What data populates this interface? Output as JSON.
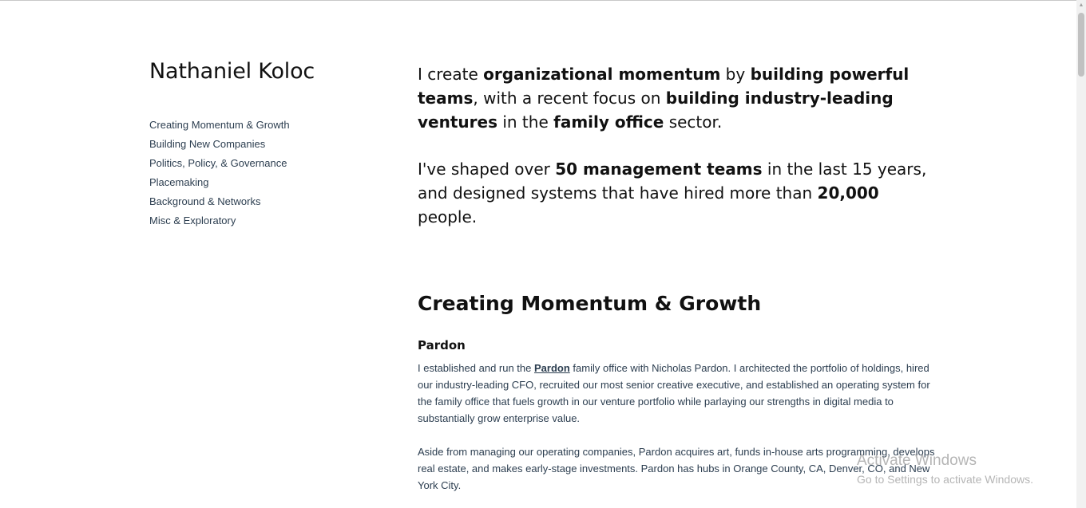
{
  "sidebar": {
    "title": "Nathaniel Koloc",
    "nav": [
      "Creating Momentum & Growth",
      "Building New Companies",
      "Politics, Policy, & Governance",
      "Placemaking",
      "Background & Networks",
      "Misc & Exploratory"
    ]
  },
  "intro": {
    "p1": {
      "t1": "I create ",
      "b1": "organizational momentum",
      "t2": " by ",
      "b2": "building powerful teams",
      "t3": ",  with a recent focus on ",
      "b3": "building industry-leading ventures",
      "t4": " in the ",
      "b4": "family office",
      "t5": " sector."
    },
    "p2": {
      "t1": "I've shaped over ",
      "b1": "50 management teams",
      "t2": " in the last 15 years, and designed systems that have hired more than ",
      "b2": "20,000",
      "t3": " people."
    }
  },
  "section": {
    "title": "Creating Momentum & Growth",
    "subsection": {
      "title": "Pardon",
      "p1": {
        "t1": "I established and run the ",
        "link": "Pardon",
        "t2": " family office with Nicholas Pardon. I architected the portfolio of holdings, hired our industry-leading CFO, recruited our most senior creative executive, and established an operating system for the family office that fuels growth in our venture portfolio while parlaying our strengths in digital media to substantially grow enterprise value."
      },
      "p2": "Aside from managing our operating companies, Pardon acquires art, funds in-house arts programming, develops real estate, and makes early-stage investments. Pardon has hubs in Orange County, CA, Denver, CO, and New York City."
    }
  },
  "watermark": {
    "title": "Activate Windows",
    "subtitle": "Go to Settings to activate Windows."
  }
}
